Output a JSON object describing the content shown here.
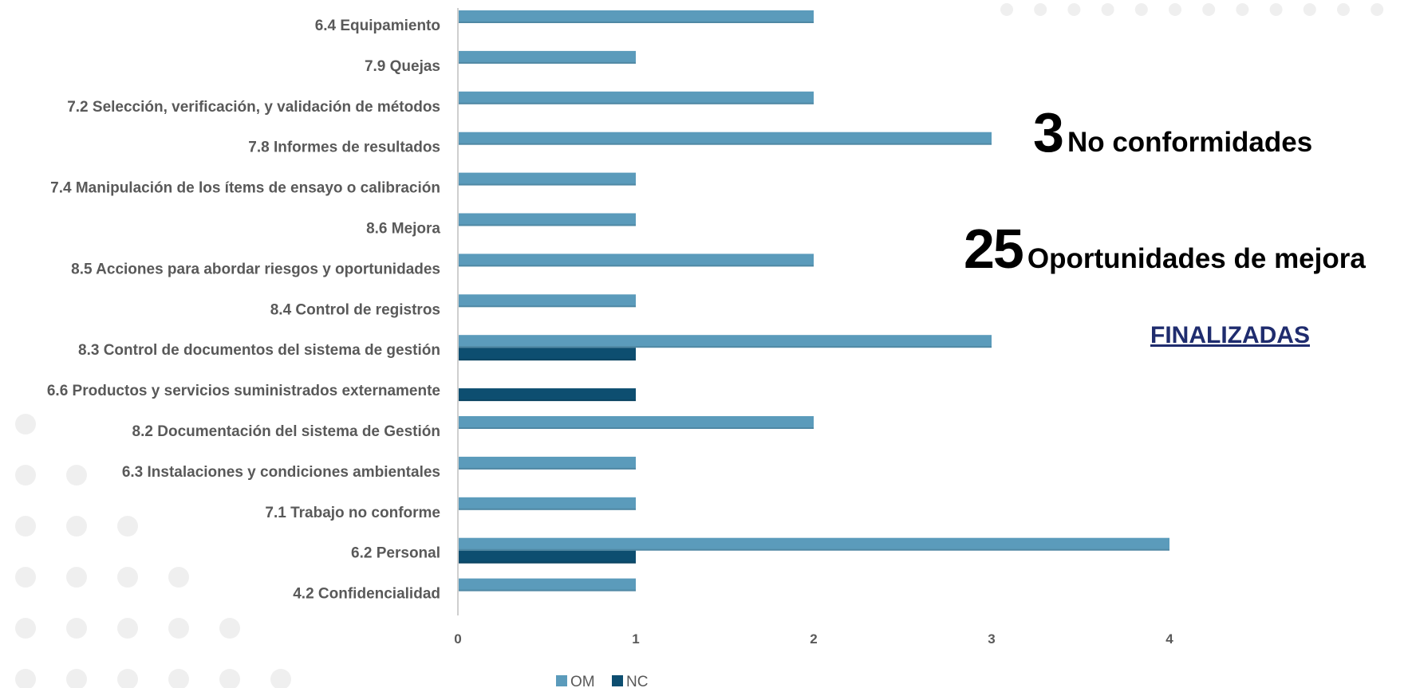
{
  "chart_data": {
    "type": "bar",
    "orientation": "horizontal",
    "categories": [
      "6.4 Equipamiento",
      "7.9 Quejas",
      "7.2 Selección, verificación, y validación de métodos",
      "7.8 Informes de resultados",
      "7.4 Manipulación de los ítems de ensayo o calibración",
      "8.6 Mejora",
      "8.5 Acciones para abordar riesgos y oportunidades",
      "8.4 Control de registros",
      "8.3 Control de documentos del sistema de gestión",
      "6.6 Productos y servicios suministrados externamente",
      "8.2 Documentación del sistema de Gestión",
      "6.3 Instalaciones y condiciones ambientales",
      "7.1 Trabajo no conforme",
      "6.2 Personal",
      "4.2 Confidencialidad"
    ],
    "series": [
      {
        "name": "OM",
        "color": "#5b9bbb",
        "values": [
          2,
          1,
          2,
          3,
          1,
          1,
          2,
          1,
          3,
          0,
          2,
          1,
          1,
          4,
          1
        ]
      },
      {
        "name": "NC",
        "color": "#0d4e70",
        "values": [
          0,
          0,
          0,
          0,
          0,
          0,
          0,
          0,
          1,
          1,
          0,
          0,
          0,
          1,
          0
        ]
      }
    ],
    "xticks": [
      "0",
      "1",
      "2",
      "3",
      "4"
    ],
    "xlim": [
      0,
      4
    ],
    "grid": false,
    "legend_position": "bottom"
  },
  "stats": {
    "nc": {
      "number": "3",
      "label": "No conformidades"
    },
    "om": {
      "number": "25",
      "label": "Oportunidades de mejora"
    }
  },
  "status_link": "FINALIZADAS",
  "colors": {
    "dots": "#efefef",
    "axis": "#bfbfbf",
    "link": "#1f2c6e"
  }
}
